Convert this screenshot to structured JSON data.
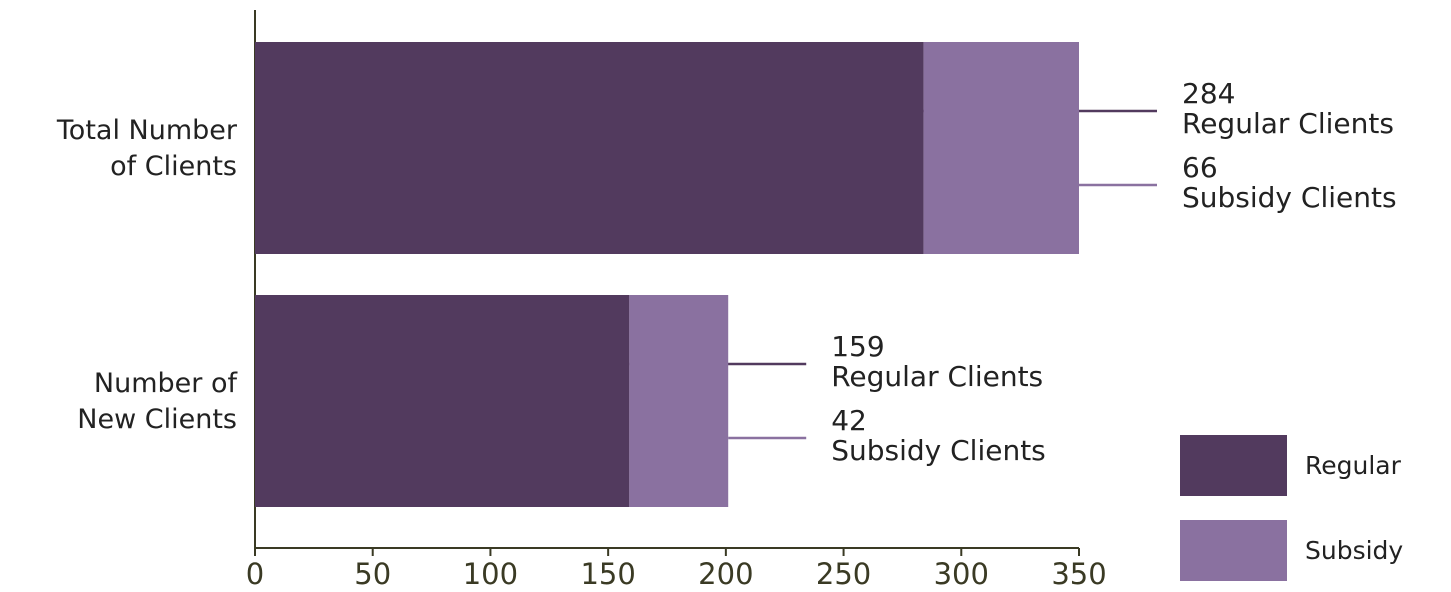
{
  "chart_data": {
    "type": "stacked_barh",
    "categories": [
      "Total Number\nof Clients",
      "Number of\nNew Clients"
    ],
    "series": [
      {
        "name": "Regular",
        "label": "Regular Clients",
        "color": "#523a5e",
        "values": [
          284,
          159
        ]
      },
      {
        "name": "Subsidy",
        "label": "Subsidy Clients",
        "color": "#8a71a0",
        "values": [
          66,
          42
        ]
      }
    ],
    "xlim": [
      0,
      350
    ],
    "xticks": [
      0,
      50,
      100,
      150,
      200,
      250,
      300,
      350
    ],
    "grid": false,
    "legend": "lower right"
  }
}
